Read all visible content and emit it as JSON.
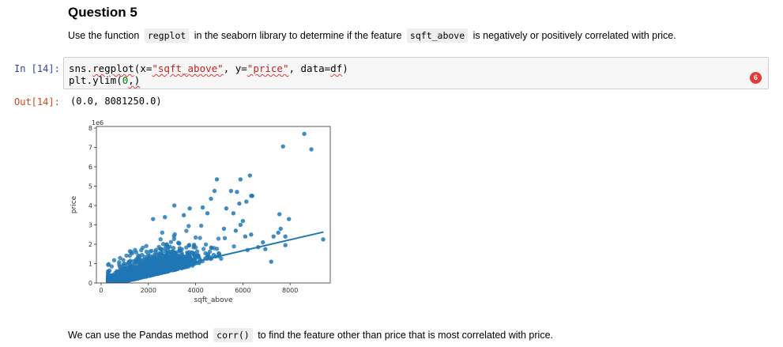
{
  "heading": "Question 5",
  "q5": {
    "pre": "Use the function",
    "code1": "regplot",
    "mid": "in the seaborn library to determine if the feature",
    "code2": "sqft_above",
    "post": "is negatively or positively correlated with price."
  },
  "cell": {
    "in_prompt": "In [14]:",
    "out_prompt": "Out[14]:",
    "output_text": "(0.0, 8081250.0)",
    "badge": "6"
  },
  "code": {
    "l1_a": "sns.",
    "l1_b": "regplot",
    "l1_c": "(x=",
    "l1_d": "\"sqft_above\"",
    "l1_e": ", y=",
    "l1_f": "\"price\"",
    "l1_g": ", data=",
    "l1_h": "df",
    "l1_i": ")",
    "l2_a": "plt.ylim(",
    "l2_b": "0",
    "l2_c": ",)"
  },
  "bottom": {
    "pre": "We can use the Pandas method",
    "code": "corr()",
    "post": "to find the feature other than price that is most correlated with price."
  },
  "chart_data": {
    "type": "scatter",
    "xlabel": "sqft_above",
    "ylabel": "price",
    "offset_text": "1e6",
    "xlim": [
      -200,
      9700
    ],
    "ylim": [
      0,
      8.08125
    ],
    "x_ticks": [
      0,
      2000,
      4000,
      6000,
      8000
    ],
    "x_tick_labels": [
      "0",
      "2000",
      "4000",
      "6000",
      "8000"
    ],
    "y_ticks": [
      0,
      1,
      2,
      3,
      4,
      5,
      6,
      7,
      8
    ],
    "y_tick_labels": [
      "0",
      "1",
      "2",
      "3",
      "4",
      "5",
      "6",
      "7",
      "8"
    ],
    "point_color": "#1f77b4",
    "regression": {
      "x": [
        290,
        9410
      ],
      "y": [
        0.05,
        2.63
      ]
    },
    "points": [
      [
        8600,
        7.7
      ],
      [
        7700,
        7.05
      ],
      [
        8900,
        6.9
      ],
      [
        6300,
        5.55
      ],
      [
        5900,
        5.35
      ],
      [
        6400,
        4.5
      ],
      [
        6350,
        4.5
      ],
      [
        4900,
        5.35
      ],
      [
        4800,
        4.75
      ],
      [
        4650,
        4.35
      ],
      [
        5500,
        4.75
      ],
      [
        5750,
        4.7
      ],
      [
        6150,
        4.2
      ],
      [
        5850,
        4.1
      ],
      [
        7550,
        3.55
      ],
      [
        7950,
        3.3
      ],
      [
        7600,
        2.8
      ],
      [
        7500,
        2.6
      ],
      [
        7800,
        2.4
      ],
      [
        7300,
        2.4
      ],
      [
        9400,
        2.25
      ],
      [
        7800,
        1.95
      ],
      [
        7200,
        1.1
      ],
      [
        5900,
        3.0
      ],
      [
        6350,
        2.5
      ],
      [
        6850,
        2.1
      ],
      [
        5600,
        3.6
      ],
      [
        6000,
        3.2
      ],
      [
        6100,
        2.4
      ],
      [
        6650,
        1.85
      ],
      [
        5300,
        3.85
      ],
      [
        5700,
        2.7
      ],
      [
        4300,
        3.9
      ],
      [
        3750,
        3.85
      ],
      [
        4500,
        3.6
      ],
      [
        3500,
        3.5
      ],
      [
        2700,
        3.4
      ],
      [
        2200,
        3.3
      ],
      [
        3100,
        4.0
      ],
      [
        5200,
        2.8
      ],
      [
        6200,
        1.7
      ],
      [
        6950,
        1.75
      ],
      [
        5000,
        1.5
      ]
    ]
  }
}
